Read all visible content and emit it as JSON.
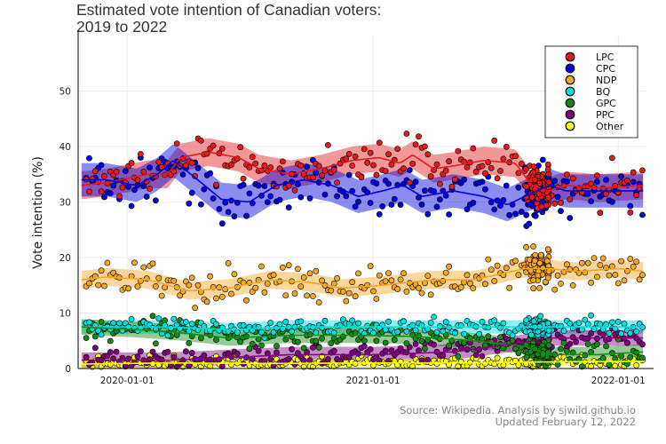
{
  "chart_data": {
    "type": "scatter",
    "title": "Estimated vote intention of Canadian voters:\n2019 to 2022",
    "ylabel": "Vote intention (%)",
    "xlabel": "",
    "xlim": [
      "2019-10-20",
      "2022-02-12"
    ],
    "ylim": [
      0,
      60
    ],
    "yticks": [
      0,
      10,
      20,
      30,
      40,
      50
    ],
    "xticks": [
      "2020-01-01",
      "2021-01-01",
      "2022-01-01"
    ],
    "grid": true,
    "legend_position": "top-right",
    "series": [
      {
        "name": "LPC",
        "color": "#e41a1c",
        "trend": [
          [
            "2019-10-25",
            33
          ],
          [
            "2019-12-01",
            33.5
          ],
          [
            "2020-02-01",
            35
          ],
          [
            "2020-03-01",
            35
          ],
          [
            "2020-03-20",
            38
          ],
          [
            "2020-05-01",
            39
          ],
          [
            "2020-06-15",
            38
          ],
          [
            "2020-07-15",
            36
          ],
          [
            "2020-09-01",
            35
          ],
          [
            "2020-10-15",
            36
          ],
          [
            "2020-12-01",
            37.5
          ],
          [
            "2021-01-10",
            38
          ],
          [
            "2021-02-10",
            37
          ],
          [
            "2021-03-01",
            38.5
          ],
          [
            "2021-04-01",
            36
          ],
          [
            "2021-05-01",
            36.5
          ],
          [
            "2021-06-15",
            37.5
          ],
          [
            "2021-08-01",
            37
          ],
          [
            "2021-08-25",
            33
          ],
          [
            "2021-09-20",
            32
          ],
          [
            "2021-10-15",
            33
          ],
          [
            "2021-12-01",
            32.5
          ],
          [
            "2022-02-10",
            33
          ]
        ]
      },
      {
        "name": "CPC",
        "color": "#0000e0",
        "trend": [
          [
            "2019-10-25",
            34
          ],
          [
            "2019-12-01",
            34
          ],
          [
            "2020-01-15",
            33
          ],
          [
            "2020-02-15",
            35
          ],
          [
            "2020-03-10",
            37.5
          ],
          [
            "2020-04-15",
            34
          ],
          [
            "2020-05-20",
            30.5
          ],
          [
            "2020-07-01",
            30
          ],
          [
            "2020-08-10",
            33
          ],
          [
            "2020-09-20",
            34
          ],
          [
            "2020-11-01",
            33
          ],
          [
            "2020-12-10",
            31
          ],
          [
            "2021-01-15",
            32
          ],
          [
            "2021-02-15",
            33
          ],
          [
            "2021-03-15",
            31
          ],
          [
            "2021-05-01",
            32
          ],
          [
            "2021-06-15",
            31
          ],
          [
            "2021-07-20",
            29.5
          ],
          [
            "2021-09-01",
            32
          ],
          [
            "2021-09-20",
            33
          ],
          [
            "2021-10-15",
            32
          ],
          [
            "2021-12-01",
            32
          ],
          [
            "2022-02-10",
            32
          ]
        ]
      },
      {
        "name": "NDP",
        "color": "#f5a623",
        "trend": [
          [
            "2019-10-25",
            16
          ],
          [
            "2019-12-01",
            16.5
          ],
          [
            "2020-02-01",
            16
          ],
          [
            "2020-04-01",
            14
          ],
          [
            "2020-06-01",
            14.5
          ],
          [
            "2020-08-01",
            16
          ],
          [
            "2020-10-01",
            15.5
          ],
          [
            "2020-11-15",
            14.5
          ],
          [
            "2021-01-15",
            15
          ],
          [
            "2021-04-01",
            16
          ],
          [
            "2021-06-01",
            16
          ],
          [
            "2021-08-15",
            18
          ],
          [
            "2021-09-20",
            18
          ],
          [
            "2021-11-01",
            17.5
          ],
          [
            "2022-01-01",
            18
          ],
          [
            "2022-02-10",
            17.5
          ]
        ]
      },
      {
        "name": "BQ",
        "color": "#00e0e0",
        "trend": [
          [
            "2019-10-25",
            7.5
          ],
          [
            "2020-03-01",
            7.5
          ],
          [
            "2020-06-01",
            7
          ],
          [
            "2020-09-01",
            7.5
          ],
          [
            "2021-01-01",
            7.5
          ],
          [
            "2021-05-01",
            7.5
          ],
          [
            "2021-09-01",
            7.5
          ],
          [
            "2022-02-10",
            7.5
          ]
        ]
      },
      {
        "name": "GPC",
        "color": "#148c14",
        "trend": [
          [
            "2019-10-25",
            7.5
          ],
          [
            "2020-01-15",
            7
          ],
          [
            "2020-03-15",
            6.5
          ],
          [
            "2020-06-01",
            5.5
          ],
          [
            "2020-09-01",
            6
          ],
          [
            "2020-12-01",
            6
          ],
          [
            "2021-03-01",
            5.8
          ],
          [
            "2021-06-01",
            5
          ],
          [
            "2021-08-15",
            4
          ],
          [
            "2021-09-20",
            2.5
          ],
          [
            "2021-12-01",
            2.5
          ],
          [
            "2022-02-10",
            3
          ]
        ]
      },
      {
        "name": "PPC",
        "color": "#800080",
        "trend": [
          [
            "2019-10-25",
            1.5
          ],
          [
            "2020-03-01",
            1.5
          ],
          [
            "2020-06-01",
            2
          ],
          [
            "2020-09-01",
            2.5
          ],
          [
            "2021-01-01",
            2.5
          ],
          [
            "2021-05-01",
            3
          ],
          [
            "2021-08-01",
            4.5
          ],
          [
            "2021-09-20",
            5.5
          ],
          [
            "2021-11-15",
            5.5
          ],
          [
            "2022-02-10",
            5.5
          ]
        ]
      },
      {
        "name": "Other",
        "color": "#ffff00",
        "trend": [
          [
            "2019-10-25",
            0.8
          ],
          [
            "2020-03-01",
            1
          ],
          [
            "2020-08-01",
            0.9
          ],
          [
            "2021-01-01",
            1
          ],
          [
            "2021-06-01",
            1
          ],
          [
            "2021-09-20",
            1.2
          ],
          [
            "2022-02-10",
            1.3
          ]
        ]
      }
    ]
  },
  "footer": {
    "source": "Source: Wikipedia. Analysis by sjwild.github.io",
    "updated": "Updated February 12, 2022"
  }
}
